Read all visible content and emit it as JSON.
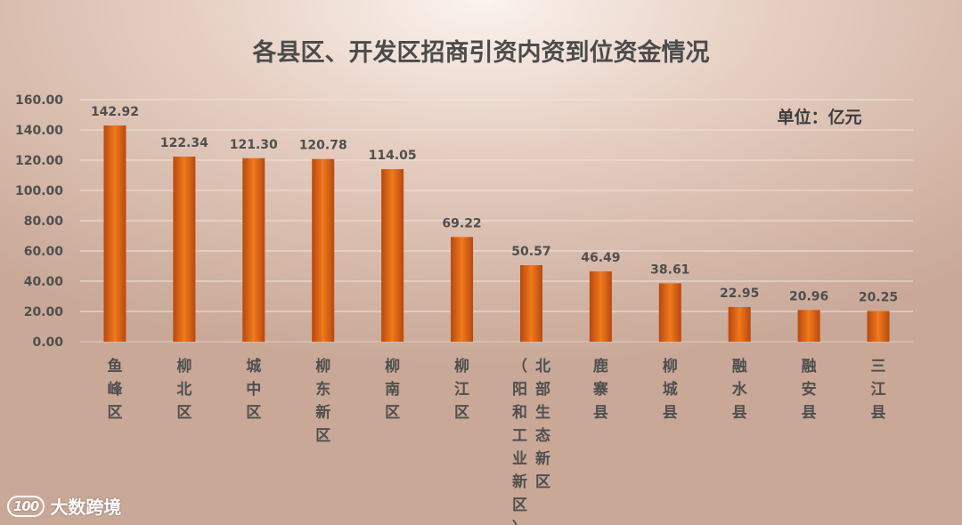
{
  "unit_label": "单位：亿元",
  "watermark": {
    "logo_text": "100",
    "brand": "大数跨境"
  },
  "chart_data": {
    "type": "bar",
    "title": "各县区、开发区招商引资内资到位资金情况",
    "xlabel": "",
    "ylabel": "",
    "ylim": [
      0,
      160
    ],
    "yticks": [
      "0.00",
      "20.00",
      "40.00",
      "60.00",
      "80.00",
      "100.00",
      "120.00",
      "140.00",
      "160.00"
    ],
    "grid": true,
    "categories": [
      "鱼峰区",
      "柳北区",
      "城中区",
      "柳东新区",
      "柳南区",
      "柳江区",
      "北部生态新区（阳和工业新区）",
      "鹿寨县",
      "柳城县",
      "融水县",
      "融安县",
      "三江县"
    ],
    "category_columns": [
      [
        [
          "鱼",
          "峰",
          "区"
        ]
      ],
      [
        [
          "柳",
          "北",
          "区"
        ]
      ],
      [
        [
          "城",
          "中",
          "区"
        ]
      ],
      [
        [
          "柳",
          "东",
          "新",
          "区"
        ]
      ],
      [
        [
          "柳",
          "南",
          "区"
        ]
      ],
      [
        [
          "柳",
          "江",
          "区"
        ]
      ],
      [
        [
          "（",
          "阳",
          "和",
          "工",
          "业",
          "新",
          "区",
          "）"
        ],
        [
          "北",
          "部",
          "生",
          "态",
          "新",
          "区"
        ]
      ],
      [
        [
          "鹿",
          "寨",
          "县"
        ]
      ],
      [
        [
          "柳",
          "城",
          "县"
        ]
      ],
      [
        [
          "融",
          "水",
          "县"
        ]
      ],
      [
        [
          "融",
          "安",
          "县"
        ]
      ],
      [
        [
          "三",
          "江",
          "县"
        ]
      ]
    ],
    "values": [
      142.92,
      122.34,
      121.3,
      120.78,
      114.05,
      69.22,
      50.57,
      46.49,
      38.61,
      22.95,
      20.96,
      20.25
    ],
    "value_labels": [
      "142.92",
      "122.34",
      "121.30",
      "120.78",
      "114.05",
      "69.22",
      "50.57",
      "46.49",
      "38.61",
      "22.95",
      "20.96",
      "20.25"
    ],
    "colors": {
      "bar_center": "#f07a1c",
      "bar_edge": "#b8480f"
    }
  }
}
